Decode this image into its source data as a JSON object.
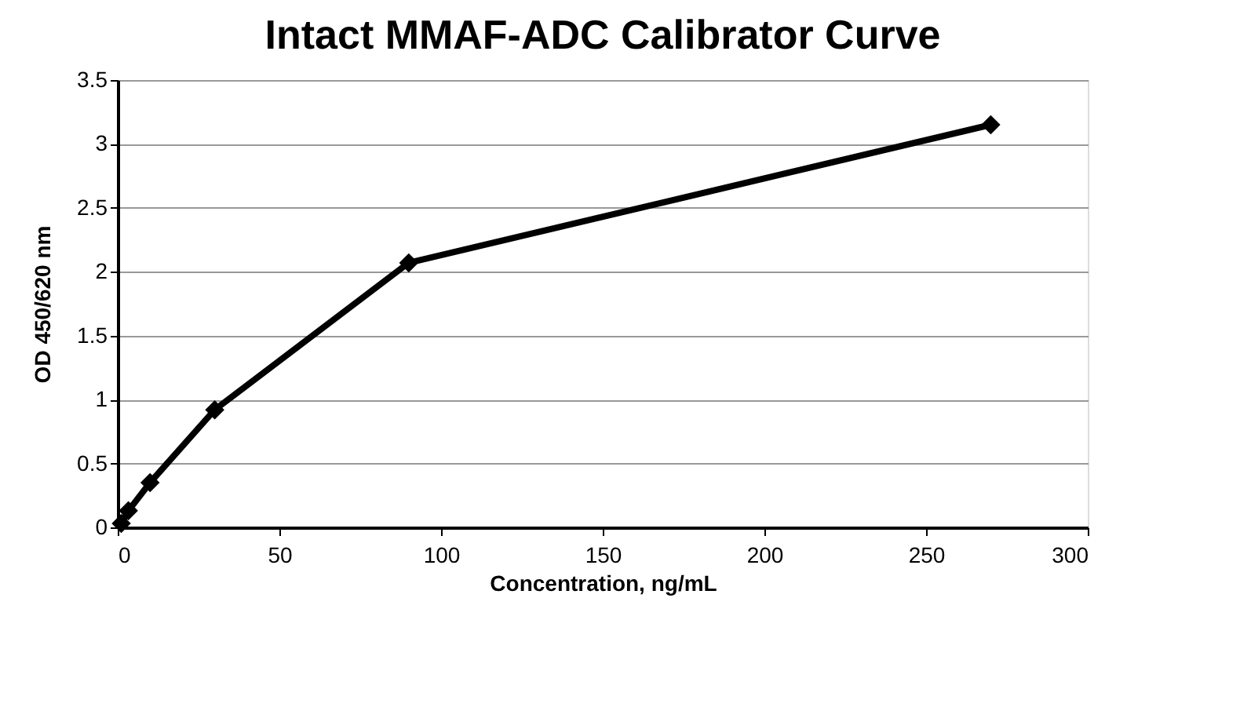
{
  "chart_data": {
    "type": "line",
    "title": "Intact MMAF-ADC Calibrator Curve",
    "xlabel": "Concentration, ng/mL",
    "ylabel": "OD    450/620 nm",
    "x": [
      1.1,
      3.3,
      10,
      30,
      90,
      270
    ],
    "series": [
      {
        "color": "#000000",
        "values": [
          0.03,
          0.13,
          0.35,
          0.92,
          2.07,
          3.15
        ]
      }
    ],
    "xlim": [
      0,
      300
    ],
    "xticks": [
      0,
      50,
      100,
      150,
      200,
      250,
      300
    ],
    "ylim": [
      0,
      3.5
    ],
    "yticks": [
      0,
      0.5,
      1,
      1.5,
      2,
      2.5,
      3,
      3.5
    ],
    "grid": "y",
    "marker": "diamond",
    "line_style": "solid"
  }
}
